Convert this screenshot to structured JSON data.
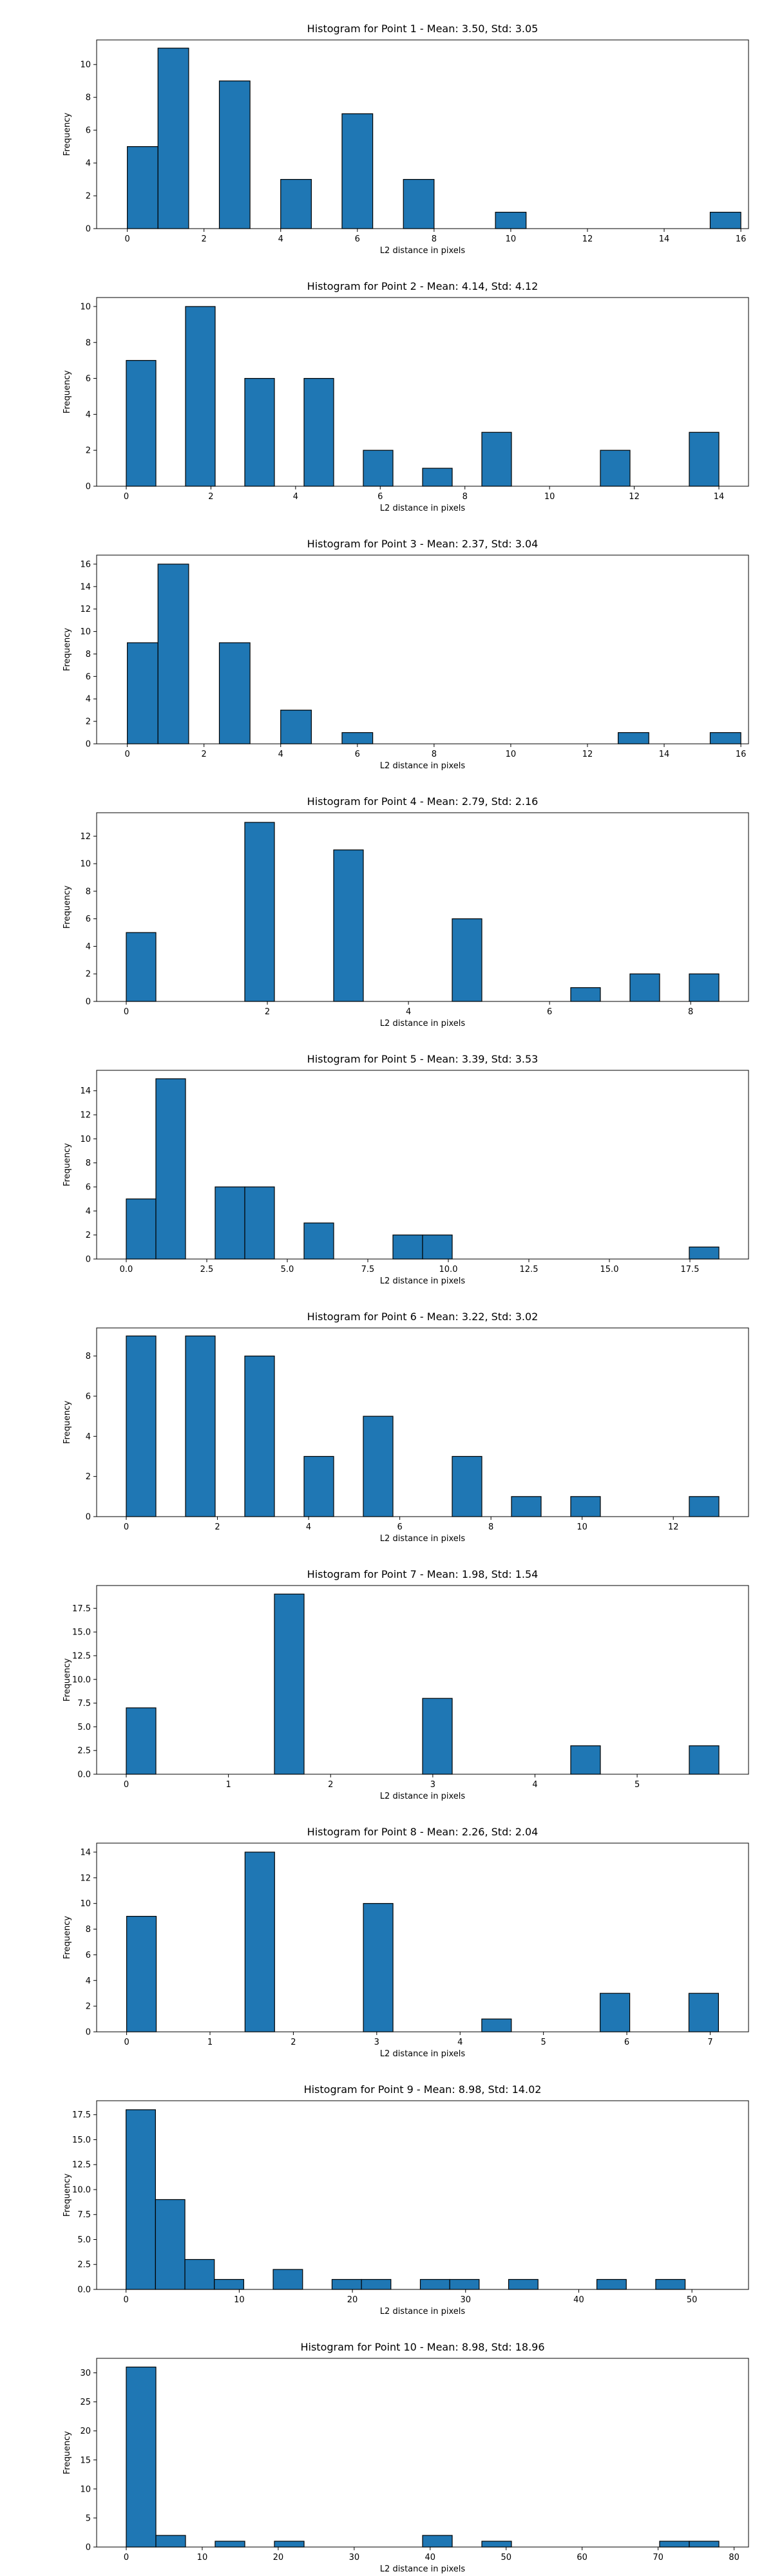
{
  "chart_data": [
    {
      "type": "bar",
      "title": "Histogram for Point 1 - Mean: 3.50, Std: 3.05",
      "xlabel": "L2 distance in pixels",
      "ylabel": "Frequency",
      "xlim": [
        -0.8,
        16.2
      ],
      "ylim": [
        0,
        11.5
      ],
      "xticks": [
        0,
        2,
        4,
        6,
        8,
        10,
        12,
        14,
        16
      ],
      "yticks": [
        0,
        2,
        4,
        6,
        8,
        10
      ],
      "bin_width": 0.8,
      "bins": [
        [
          0,
          5
        ],
        [
          0.8,
          11
        ],
        [
          1.6,
          0
        ],
        [
          2.4,
          9
        ],
        [
          3.2,
          0
        ],
        [
          4.0,
          3
        ],
        [
          4.8,
          0
        ],
        [
          5.6,
          7
        ],
        [
          6.4,
          0
        ],
        [
          7.2,
          3
        ],
        [
          8.0,
          0
        ],
        [
          8.8,
          0
        ],
        [
          9.6,
          1
        ],
        [
          10.4,
          0
        ],
        [
          11.2,
          0
        ],
        [
          12.0,
          0
        ],
        [
          12.8,
          0
        ],
        [
          13.6,
          0
        ],
        [
          14.4,
          0
        ],
        [
          15.2,
          1
        ]
      ]
    },
    {
      "type": "bar",
      "title": "Histogram for Point 2 - Mean: 4.14, Std: 4.12",
      "xlabel": "L2 distance in pixels",
      "ylabel": "Frequency",
      "xlim": [
        -0.7,
        14.7
      ],
      "ylim": [
        0,
        10.5
      ],
      "xticks": [
        0,
        2,
        4,
        6,
        8,
        10,
        12,
        14
      ],
      "yticks": [
        0,
        2,
        4,
        6,
        8,
        10
      ],
      "bin_width": 0.7,
      "bins": [
        [
          0,
          7
        ],
        [
          0.7,
          0
        ],
        [
          1.4,
          10
        ],
        [
          2.1,
          0
        ],
        [
          2.8,
          6
        ],
        [
          3.5,
          0
        ],
        [
          4.2,
          6
        ],
        [
          4.9,
          0
        ],
        [
          5.6,
          2
        ],
        [
          6.3,
          0
        ],
        [
          7.0,
          1
        ],
        [
          7.7,
          0
        ],
        [
          8.4,
          3
        ],
        [
          9.1,
          0
        ],
        [
          9.8,
          0
        ],
        [
          10.5,
          0
        ],
        [
          11.2,
          2
        ],
        [
          11.9,
          0
        ],
        [
          12.6,
          0
        ],
        [
          13.3,
          3
        ]
      ]
    },
    {
      "type": "bar",
      "title": "Histogram for Point 3 - Mean: 2.37, Std: 3.04",
      "xlabel": "L2 distance in pixels",
      "ylabel": "Frequency",
      "xlim": [
        -0.8,
        16.2
      ],
      "ylim": [
        0,
        16.8
      ],
      "xticks": [
        0,
        2,
        4,
        6,
        8,
        10,
        12,
        14,
        16
      ],
      "yticks": [
        0,
        2,
        4,
        6,
        8,
        10,
        12,
        14,
        16
      ],
      "bin_width": 0.8,
      "bins": [
        [
          0,
          9
        ],
        [
          0.8,
          16
        ],
        [
          1.6,
          0
        ],
        [
          2.4,
          9
        ],
        [
          3.2,
          0
        ],
        [
          4.0,
          3
        ],
        [
          4.8,
          0
        ],
        [
          5.6,
          1
        ],
        [
          6.4,
          0
        ],
        [
          7.2,
          0
        ],
        [
          8.0,
          0
        ],
        [
          8.8,
          0
        ],
        [
          9.6,
          0
        ],
        [
          10.4,
          0
        ],
        [
          11.2,
          0
        ],
        [
          12.0,
          0
        ],
        [
          12.8,
          1
        ],
        [
          13.6,
          0
        ],
        [
          14.4,
          0
        ],
        [
          15.2,
          1
        ]
      ]
    },
    {
      "type": "bar",
      "title": "Histogram for Point 4 - Mean: 2.79, Std: 2.16",
      "xlabel": "L2 distance in pixels",
      "ylabel": "Frequency",
      "xlim": [
        -0.42,
        8.82
      ],
      "ylim": [
        0,
        13.7
      ],
      "xticks": [
        0,
        2,
        4,
        6,
        8
      ],
      "yticks": [
        0,
        2,
        4,
        6,
        8,
        10,
        12
      ],
      "bin_width": 0.42,
      "bins": [
        [
          0,
          5
        ],
        [
          0.42,
          0
        ],
        [
          0.84,
          0
        ],
        [
          1.26,
          0
        ],
        [
          1.68,
          13
        ],
        [
          2.1,
          0
        ],
        [
          2.52,
          0
        ],
        [
          2.94,
          11
        ],
        [
          3.36,
          0
        ],
        [
          3.78,
          0
        ],
        [
          4.2,
          0
        ],
        [
          4.62,
          6
        ],
        [
          5.04,
          0
        ],
        [
          5.46,
          0
        ],
        [
          5.88,
          0
        ],
        [
          6.3,
          1
        ],
        [
          6.72,
          0
        ],
        [
          7.14,
          2
        ],
        [
          7.56,
          0
        ],
        [
          7.98,
          2
        ]
      ]
    },
    {
      "type": "bar",
      "title": "Histogram for Point 5 - Mean: 3.39, Std: 3.53",
      "xlabel": "L2 distance in pixels",
      "ylabel": "Frequency",
      "xlim": [
        -0.92,
        19.32
      ],
      "ylim": [
        0,
        15.7
      ],
      "xticks": [
        0.0,
        2.5,
        5.0,
        7.5,
        10.0,
        12.5,
        15.0,
        17.5
      ],
      "yticks": [
        0,
        2,
        4,
        6,
        8,
        10,
        12,
        14
      ],
      "bin_width": 0.92,
      "bins": [
        [
          0,
          5
        ],
        [
          0.92,
          15
        ],
        [
          1.84,
          0
        ],
        [
          2.76,
          6
        ],
        [
          3.68,
          6
        ],
        [
          4.6,
          0
        ],
        [
          5.52,
          3
        ],
        [
          6.44,
          0
        ],
        [
          7.36,
          0
        ],
        [
          8.28,
          2
        ],
        [
          9.2,
          2
        ],
        [
          10.12,
          0
        ],
        [
          11.04,
          0
        ],
        [
          11.96,
          0
        ],
        [
          12.88,
          0
        ],
        [
          13.8,
          0
        ],
        [
          14.72,
          0
        ],
        [
          15.64,
          0
        ],
        [
          16.56,
          0
        ],
        [
          17.48,
          1
        ]
      ]
    },
    {
      "type": "bar",
      "title": "Histogram for Point 6 - Mean: 3.22, Std: 3.02",
      "xlabel": "L2 distance in pixels",
      "ylabel": "Frequency",
      "xlim": [
        -0.65,
        13.65
      ],
      "ylim": [
        0,
        9.4
      ],
      "xticks": [
        0,
        2,
        4,
        6,
        8,
        10,
        12
      ],
      "yticks": [
        0,
        2,
        4,
        6,
        8
      ],
      "bin_width": 0.65,
      "bins": [
        [
          0,
          9
        ],
        [
          0.65,
          0
        ],
        [
          1.3,
          9
        ],
        [
          1.95,
          0
        ],
        [
          2.6,
          8
        ],
        [
          3.25,
          0
        ],
        [
          3.9,
          3
        ],
        [
          4.55,
          0
        ],
        [
          5.2,
          5
        ],
        [
          5.85,
          0
        ],
        [
          6.5,
          0
        ],
        [
          7.15,
          3
        ],
        [
          7.8,
          0
        ],
        [
          8.45,
          1
        ],
        [
          9.1,
          0
        ],
        [
          9.75,
          1
        ],
        [
          10.4,
          0
        ],
        [
          11.05,
          0
        ],
        [
          11.7,
          0
        ],
        [
          12.35,
          1
        ]
      ]
    },
    {
      "type": "bar",
      "title": "Histogram for Point 7 - Mean: 1.98, Std: 1.54",
      "xlabel": "L2 distance in pixels",
      "ylabel": "Frequency",
      "xlim": [
        -0.29,
        6.09
      ],
      "ylim": [
        0,
        19.9
      ],
      "xticks": [
        0,
        1,
        2,
        3,
        4,
        5
      ],
      "yticks": [
        0.0,
        2.5,
        5.0,
        7.5,
        10.0,
        12.5,
        15.0,
        17.5
      ],
      "bin_width": 0.29,
      "bins": [
        [
          0,
          7
        ],
        [
          0.29,
          0
        ],
        [
          0.58,
          0
        ],
        [
          0.87,
          0
        ],
        [
          1.16,
          0
        ],
        [
          1.45,
          19
        ],
        [
          1.74,
          0
        ],
        [
          2.03,
          0
        ],
        [
          2.32,
          0
        ],
        [
          2.61,
          0
        ],
        [
          2.9,
          8
        ],
        [
          3.19,
          0
        ],
        [
          3.48,
          0
        ],
        [
          3.77,
          0
        ],
        [
          4.06,
          0
        ],
        [
          4.35,
          3
        ],
        [
          4.64,
          0
        ],
        [
          4.93,
          0
        ],
        [
          5.22,
          0
        ],
        [
          5.51,
          3
        ]
      ]
    },
    {
      "type": "bar",
      "title": "Histogram for Point 8 - Mean: 2.26, Std: 2.04",
      "xlabel": "L2 distance in pixels",
      "ylabel": "Frequency",
      "xlim": [
        -0.36,
        7.46
      ],
      "ylim": [
        0,
        14.7
      ],
      "xticks": [
        0,
        1,
        2,
        3,
        4,
        5,
        6,
        7
      ],
      "yticks": [
        0,
        2,
        4,
        6,
        8,
        10,
        12,
        14
      ],
      "bin_width": 0.355,
      "bins": [
        [
          0,
          9
        ],
        [
          0.355,
          0
        ],
        [
          0.71,
          0
        ],
        [
          1.065,
          0
        ],
        [
          1.42,
          14
        ],
        [
          1.775,
          0
        ],
        [
          2.13,
          0
        ],
        [
          2.485,
          0
        ],
        [
          2.84,
          10
        ],
        [
          3.195,
          0
        ],
        [
          3.55,
          0
        ],
        [
          3.905,
          0
        ],
        [
          4.26,
          1
        ],
        [
          4.615,
          0
        ],
        [
          4.97,
          0
        ],
        [
          5.325,
          0
        ],
        [
          5.68,
          3
        ],
        [
          6.035,
          0
        ],
        [
          6.39,
          0
        ],
        [
          6.745,
          3
        ]
      ]
    },
    {
      "type": "bar",
      "title": "Histogram for Point 9 - Mean: 8.98, Std: 14.02",
      "xlabel": "L2 distance in pixels",
      "ylabel": "Frequency",
      "xlim": [
        -2.6,
        55.0
      ],
      "ylim": [
        0,
        18.9
      ],
      "xticks": [
        0,
        10,
        20,
        30,
        40,
        50
      ],
      "yticks": [
        0.0,
        2.5,
        5.0,
        7.5,
        10.0,
        12.5,
        15.0,
        17.5
      ],
      "bin_width": 2.6,
      "bins": [
        [
          0,
          18
        ],
        [
          2.6,
          9
        ],
        [
          5.2,
          3
        ],
        [
          7.8,
          1
        ],
        [
          10.4,
          0
        ],
        [
          13.0,
          2
        ],
        [
          15.6,
          0
        ],
        [
          18.2,
          1
        ],
        [
          20.8,
          1
        ],
        [
          23.4,
          0
        ],
        [
          26.0,
          1
        ],
        [
          28.6,
          1
        ],
        [
          31.2,
          0
        ],
        [
          33.8,
          1
        ],
        [
          36.4,
          0
        ],
        [
          39.0,
          0
        ],
        [
          41.6,
          1
        ],
        [
          44.2,
          0
        ],
        [
          46.8,
          1
        ],
        [
          49.4,
          0
        ]
      ]
    },
    {
      "type": "bar",
      "title": "Histogram for Point 10 - Mean: 8.98, Std: 18.96",
      "xlabel": "L2 distance in pixels",
      "ylabel": "Frequency",
      "xlim": [
        -3.9,
        81.9
      ],
      "ylim": [
        0,
        32.5
      ],
      "xticks": [
        0,
        10,
        20,
        30,
        40,
        50,
        60,
        70,
        80
      ],
      "yticks": [
        0,
        5,
        10,
        15,
        20,
        25,
        30
      ],
      "bin_width": 3.9,
      "bins": [
        [
          0,
          31
        ],
        [
          3.9,
          2
        ],
        [
          7.8,
          0
        ],
        [
          11.7,
          1
        ],
        [
          15.6,
          0
        ],
        [
          19.5,
          1
        ],
        [
          23.4,
          0
        ],
        [
          27.3,
          0
        ],
        [
          31.2,
          0
        ],
        [
          35.1,
          0
        ],
        [
          39.0,
          2
        ],
        [
          42.9,
          0
        ],
        [
          46.8,
          1
        ],
        [
          50.7,
          0
        ],
        [
          54.6,
          0
        ],
        [
          58.5,
          0
        ],
        [
          62.4,
          0
        ],
        [
          66.3,
          0
        ],
        [
          70.2,
          1
        ],
        [
          74.1,
          1
        ]
      ]
    }
  ],
  "style": {
    "bar_color": "#1f77b4",
    "edge_color": "#000000"
  }
}
